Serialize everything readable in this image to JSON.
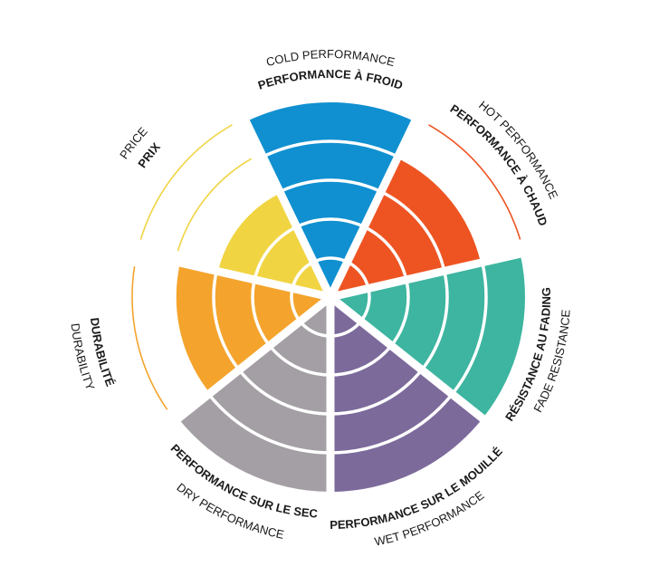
{
  "chart_data": {
    "type": "polar-area",
    "scale_max": 5,
    "grid": true,
    "categories": [
      {
        "label": "COLD PERFORMANCE",
        "label_fr": "PERFORMANCE À FROID",
        "value": 5,
        "color": "#1090d0"
      },
      {
        "label": "HOT PERFORMANCE",
        "label_fr": "PERFORMANCE À CHAUD",
        "value": 4,
        "color": "#ee5422"
      },
      {
        "label": "FADE RESISTANCE",
        "label_fr": "RÉSISTANCE AU FADING",
        "value": 5,
        "color": "#3db5a0"
      },
      {
        "label": "WET PERFORMANCE",
        "label_fr": "PERFORMANCE SUR LE MOUILLÉ",
        "value": 5,
        "color": "#7c6a9b"
      },
      {
        "label": "DRY PERFORMANCE",
        "label_fr": "PERFORMANCE SUR LE SEC",
        "value": 5,
        "color": "#a49fa4"
      },
      {
        "label": "DURABILITY",
        "label_fr": "DURABILITÉ",
        "value": 4,
        "color": "#f4a42c"
      },
      {
        "label": "PRICE",
        "label_fr": "PRIX",
        "value": 3,
        "color": "#f0d442"
      }
    ]
  }
}
